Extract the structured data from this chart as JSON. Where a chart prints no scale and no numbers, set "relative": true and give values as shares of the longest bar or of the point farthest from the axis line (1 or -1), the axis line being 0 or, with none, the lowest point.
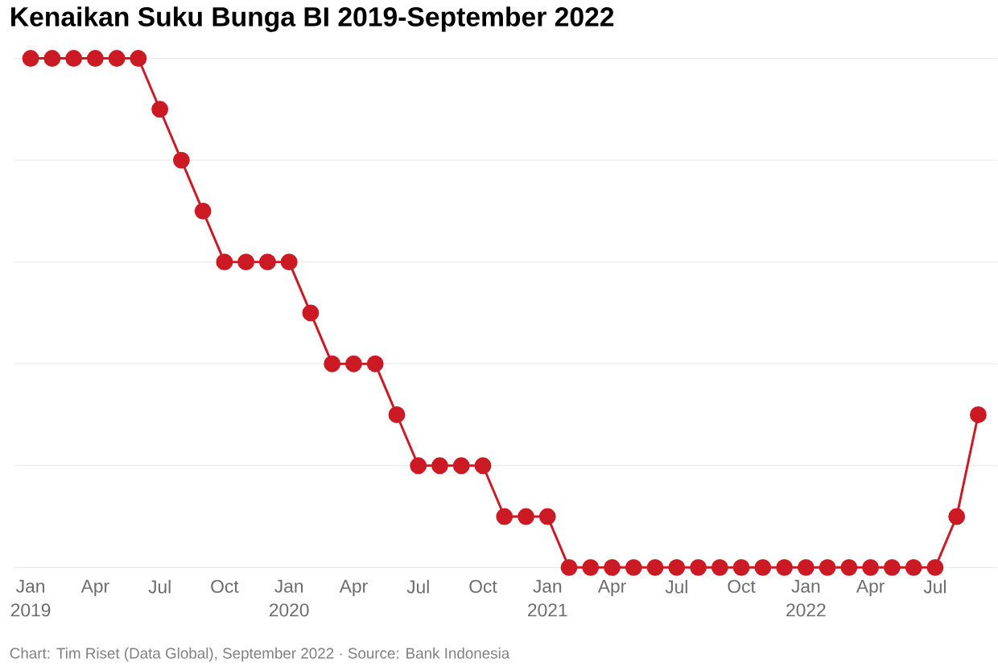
{
  "chart_data": {
    "type": "line",
    "title": "Kenaikan Suku Bunga BI 2019-September 2022",
    "annotations": [
      "Chart: Tim Riset (Data Global), September 2022 · Source: Bank Indonesia"
    ],
    "relative": true,
    "x": [
      "2019-01",
      "2019-02",
      "2019-03",
      "2019-04",
      "2019-05",
      "2019-06",
      "2019-07",
      "2019-08",
      "2019-09",
      "2019-10",
      "2019-11",
      "2019-12",
      "2020-01",
      "2020-02",
      "2020-03",
      "2020-04",
      "2020-05",
      "2020-06",
      "2020-07",
      "2020-08",
      "2020-09",
      "2020-10",
      "2020-11",
      "2020-12",
      "2021-01",
      "2021-02",
      "2021-03",
      "2021-04",
      "2021-05",
      "2021-06",
      "2021-07",
      "2021-08",
      "2021-09",
      "2021-10",
      "2021-11",
      "2021-12",
      "2022-01",
      "2022-02",
      "2022-03",
      "2022-04",
      "2022-05",
      "2022-06",
      "2022-07",
      "2022-08",
      "2022-09"
    ],
    "series": [
      {
        "color": "#cc1a24",
        "values": [
          1,
          1,
          1,
          1,
          1,
          1,
          0.9,
          0.8,
          0.7,
          0.6,
          0.6,
          0.6,
          0.6,
          0.5,
          0.4,
          0.4,
          0.4,
          0.3,
          0.2,
          0.2,
          0.2,
          0.2,
          0.1,
          0.1,
          0.1,
          0,
          0,
          0,
          0,
          0,
          0,
          0,
          0,
          0,
          0,
          0,
          0,
          0,
          0,
          0,
          0,
          0,
          0,
          0.1,
          0.3
        ]
      }
    ],
    "xlim": [
      "2018-12-08",
      "2022-09-28"
    ],
    "xticks": [
      {
        "value": "2019-01",
        "label": "Jan 2019"
      },
      {
        "value": "2019-04",
        "label": "Apr"
      },
      {
        "value": "2019-07",
        "label": "Jul"
      },
      {
        "value": "2019-10",
        "label": "Oct"
      },
      {
        "value": "2020-01",
        "label": "Jan 2020"
      },
      {
        "value": "2020-04",
        "label": "Apr"
      },
      {
        "value": "2020-07",
        "label": "Jul"
      },
      {
        "value": "2020-10",
        "label": "Oct"
      },
      {
        "value": "2021-01",
        "label": "Jan 2021"
      },
      {
        "value": "2021-04",
        "label": "Apr"
      },
      {
        "value": "2021-07",
        "label": "Jul"
      },
      {
        "value": "2021-10",
        "label": "Oct"
      },
      {
        "value": "2022-01",
        "label": "Jan 2022"
      },
      {
        "value": "2022-04",
        "label": "Apr"
      },
      {
        "value": "2022-07",
        "label": "Jul"
      }
    ],
    "grid": "y",
    "marker": "circle",
    "line_style": "solid"
  }
}
